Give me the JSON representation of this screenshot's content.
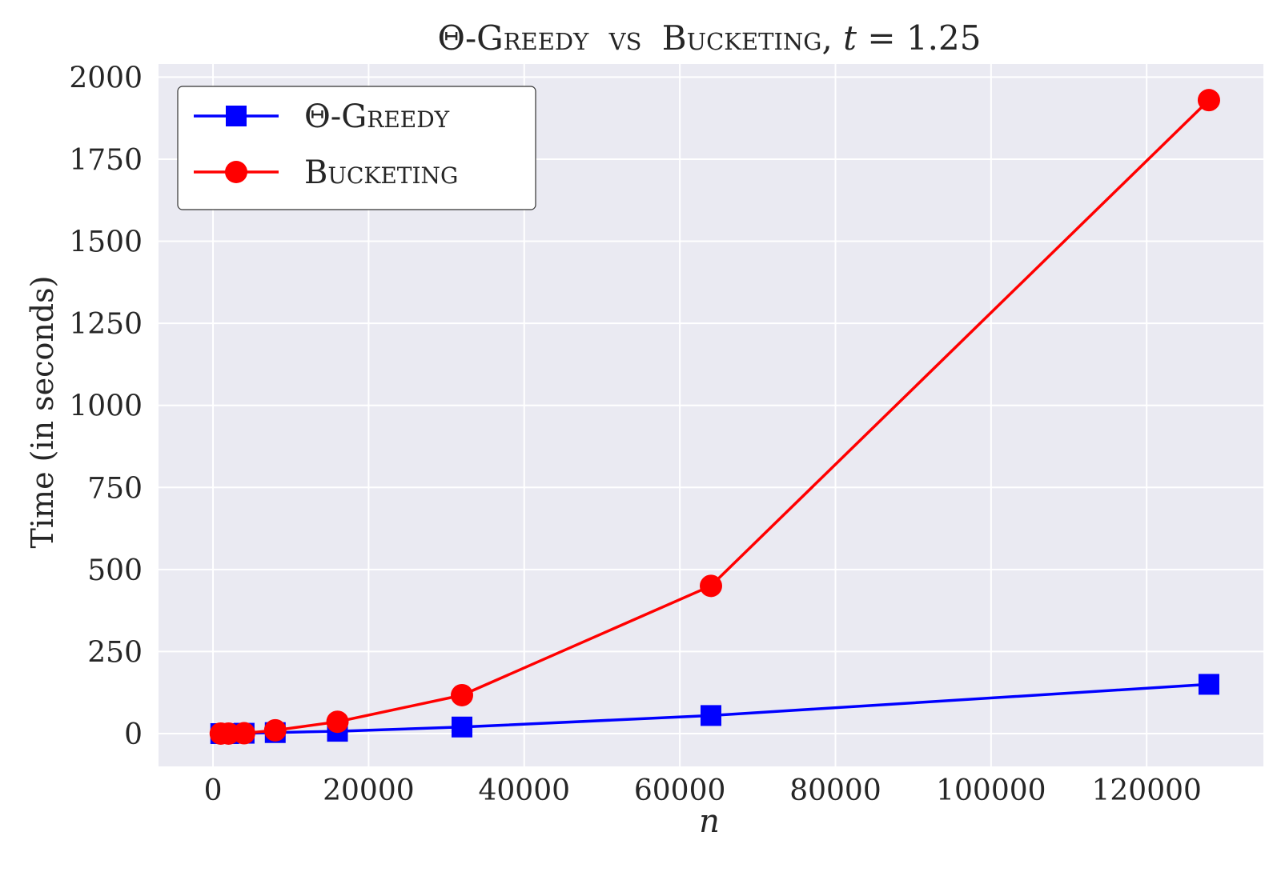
{
  "chart_data": {
    "type": "line",
    "title": {
      "series_a": "Θ-Greedy",
      "connector": "vs",
      "series_b": "Bucketing",
      "param_name": "t",
      "param_eq": " = 1.25"
    },
    "xlabel": "n",
    "ylabel": "Time (in seconds)",
    "xlim": [
      -7000,
      135000
    ],
    "ylim": [
      -100,
      2040
    ],
    "xticks": [
      0,
      20000,
      40000,
      60000,
      80000,
      100000,
      120000
    ],
    "yticks": [
      0,
      250,
      500,
      750,
      1000,
      1250,
      1500,
      1750,
      2000
    ],
    "grid": true,
    "legend_position": "upper-left",
    "background": "#eaeaf2",
    "series": [
      {
        "name": "Θ-Greedy",
        "color": "#0000ff",
        "marker": "square",
        "x": [
          1000,
          2000,
          4000,
          8000,
          16000,
          32000,
          64000,
          128000
        ],
        "y": [
          0,
          0,
          1,
          3,
          7,
          20,
          55,
          150
        ]
      },
      {
        "name": "Bucketing",
        "color": "#ff0000",
        "marker": "circle",
        "x": [
          1000,
          2000,
          4000,
          8000,
          16000,
          32000,
          64000,
          128000
        ],
        "y": [
          0,
          0,
          1,
          10,
          36,
          117,
          450,
          1930
        ]
      }
    ]
  }
}
